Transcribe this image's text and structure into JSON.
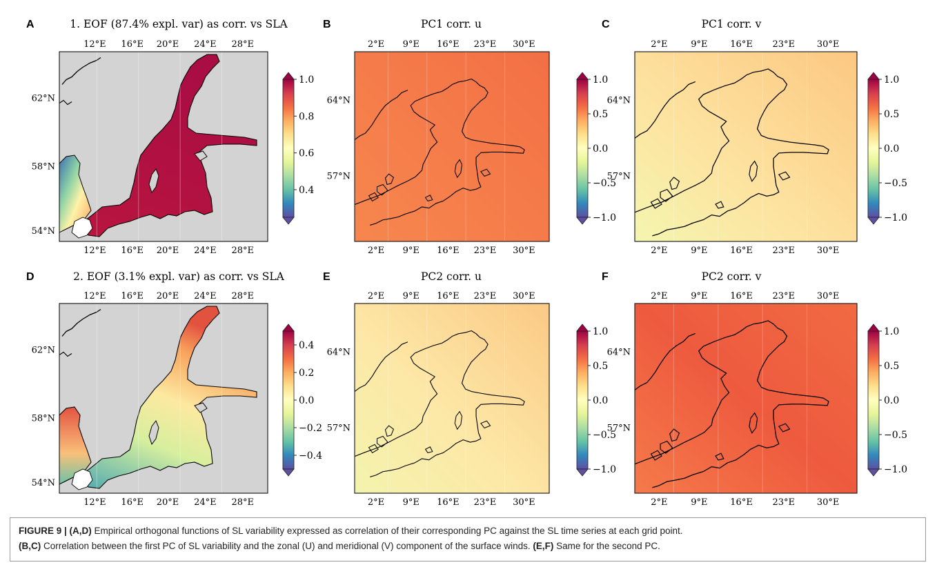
{
  "panels": [
    {
      "id": "A",
      "letter": "A",
      "title": "1. EOF (87.4% expl. var) as corr. vs SLA",
      "kind": "eof",
      "xticks": [
        "12°E",
        "16°E",
        "20°E",
        "24°E",
        "28°E"
      ],
      "yticks": [
        "62°N",
        "58°N",
        "54°N"
      ],
      "cbar_ticks": [
        "1.0",
        "0.8",
        "0.6",
        "0.4"
      ],
      "cbar_range": [
        0.25,
        1.0
      ],
      "field": "eof1"
    },
    {
      "id": "B",
      "letter": "B",
      "title": "PC1 corr. u",
      "kind": "wind",
      "xticks": [
        "2°E",
        "9°E",
        "16°E",
        "23°E",
        "30°E"
      ],
      "yticks": [
        "64°N",
        "57°N"
      ],
      "cbar_ticks": [
        "1.0",
        "0.5",
        "0.0",
        "−0.5",
        "−1.0"
      ],
      "cbar_range": [
        -1.0,
        1.0
      ],
      "field": "pc1u"
    },
    {
      "id": "C",
      "letter": "C",
      "title": "PC1 corr. v",
      "kind": "wind",
      "xticks": [
        "2°E",
        "9°E",
        "16°E",
        "23°E",
        "30°E"
      ],
      "yticks": [
        "64°N",
        "57°N"
      ],
      "cbar_ticks": [
        "1.0",
        "0.5",
        "0.0",
        "−0.5",
        "−1.0"
      ],
      "cbar_range": [
        -1.0,
        1.0
      ],
      "field": "pc1v"
    },
    {
      "id": "D",
      "letter": "D",
      "title": "2. EOF (3.1% expl. var) as corr. vs SLA",
      "kind": "eof",
      "xticks": [
        "12°E",
        "16°E",
        "20°E",
        "24°E",
        "28°E"
      ],
      "yticks": [
        "62°N",
        "58°N",
        "54°N"
      ],
      "cbar_ticks": [
        "0.4",
        "0.2",
        "0.0",
        "−0.2",
        "−0.4"
      ],
      "cbar_range": [
        -0.5,
        0.5
      ],
      "field": "eof2"
    },
    {
      "id": "E",
      "letter": "E",
      "title": "PC2 corr. u",
      "kind": "wind",
      "xticks": [
        "2°E",
        "9°E",
        "16°E",
        "23°E",
        "30°E"
      ],
      "yticks": [
        "64°N",
        "57°N"
      ],
      "cbar_ticks": [
        "1.0",
        "0.5",
        "0.0",
        "−0.5",
        "−1.0"
      ],
      "cbar_range": [
        -1.0,
        1.0
      ],
      "field": "pc2u"
    },
    {
      "id": "F",
      "letter": "F",
      "title": "PC2 corr. v",
      "kind": "wind",
      "xticks": [
        "2°E",
        "9°E",
        "16°E",
        "23°E",
        "30°E"
      ],
      "yticks": [
        "64°N",
        "57°N"
      ],
      "cbar_ticks": [
        "1.0",
        "0.5",
        "0.0",
        "−0.5",
        "−1.0"
      ],
      "cbar_range": [
        -1.0,
        1.0
      ],
      "field": "pc2v"
    }
  ],
  "colormap": "Spectral_r",
  "colors": {
    "land_gray": "#d3d3d3",
    "coast": "#000000",
    "border": "#222222",
    "caption_border": "#9a9a9a"
  },
  "caption": {
    "figure_label": "FIGURE 9 | ",
    "p1_bold": "(A,D)",
    "p1_text": " Empirical orthogonal functions of SL variability expressed as correlation of their corresponding PC against the SL time series at each grid point.",
    "p2_bold": "(B,C)",
    "p2_text": " Correlation between the first PC of SL variability and the zonal (U) and meridional (V) component of the surface winds. ",
    "p3_bold": "(E,F)",
    "p3_text": " Same for the second PC."
  }
}
